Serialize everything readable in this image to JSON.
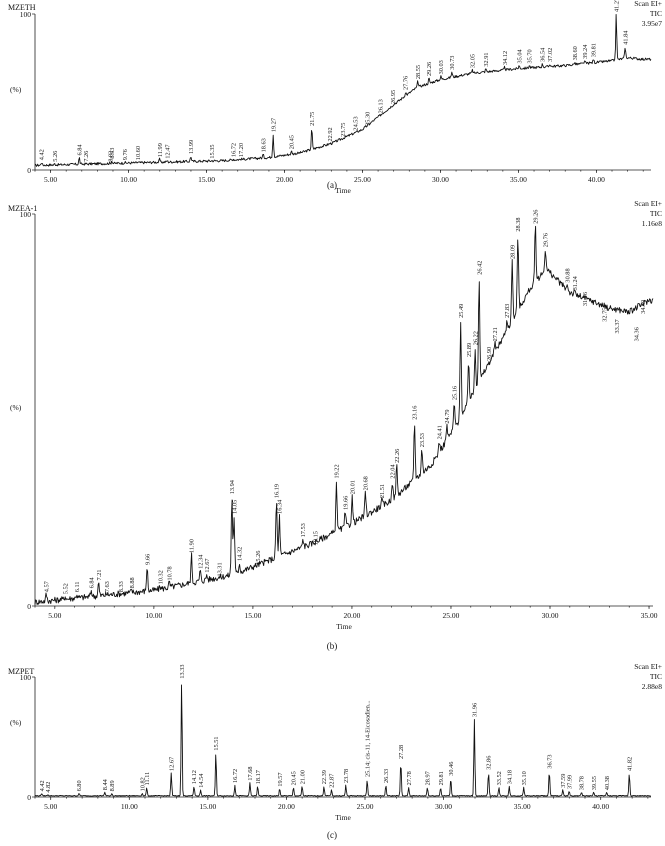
{
  "chart_data": [
    {
      "type": "line",
      "panel_label": "(a)",
      "sample_name": "MZETH",
      "scan_info": [
        "Scan EI+",
        "TIC",
        "3.95e7"
      ],
      "xlabel": "Time",
      "ylabel": "(%)",
      "xlim": [
        4.0,
        43.5
      ],
      "ylim": [
        0,
        100
      ],
      "x_ticks": [
        5.0,
        10.0,
        15.0,
        20.0,
        25.0,
        30.0,
        35.0,
        40.0
      ],
      "x_tick_labels": [
        "5.00",
        "10.00",
        "15.00",
        "20.00",
        "25.00",
        "30.00",
        "35.00",
        "40.00"
      ],
      "y_ticks": [
        0,
        100
      ],
      "y_tick_labels": [
        "0",
        "100"
      ],
      "baseline": [
        [
          4.0,
          3
        ],
        [
          8.0,
          4
        ],
        [
          12.0,
          5
        ],
        [
          16.0,
          6
        ],
        [
          19.0,
          8
        ],
        [
          21.0,
          11
        ],
        [
          23.0,
          17
        ],
        [
          25.0,
          26
        ],
        [
          27.0,
          42
        ],
        [
          28.5,
          53
        ],
        [
          30.0,
          58
        ],
        [
          32.0,
          62
        ],
        [
          35.0,
          65
        ],
        [
          38.0,
          67
        ],
        [
          40.0,
          69
        ],
        [
          41.0,
          70
        ],
        [
          42.0,
          72
        ],
        [
          43.0,
          71
        ]
      ],
      "peaks": [
        {
          "x": 4.42,
          "y": 5,
          "label": "4.42"
        },
        {
          "x": 5.26,
          "y": 4,
          "label": "5.26"
        },
        {
          "x": 6.84,
          "y": 8,
          "label": "6.84"
        },
        {
          "x": 7.26,
          "y": 4,
          "label": "7.26"
        },
        {
          "x": 8.82,
          "y": 4,
          "label": "8.82"
        },
        {
          "x": 8.93,
          "y": 6,
          "label": "8.93"
        },
        {
          "x": 9.76,
          "y": 5,
          "label": "9.76"
        },
        {
          "x": 10.6,
          "y": 5,
          "label": "10.60"
        },
        {
          "x": 11.99,
          "y": 7,
          "label": "11.99"
        },
        {
          "x": 12.47,
          "y": 6,
          "label": "12.47"
        },
        {
          "x": 13.99,
          "y": 9,
          "label": "13.99"
        },
        {
          "x": 15.35,
          "y": 6,
          "label": "15.35"
        },
        {
          "x": 16.72,
          "y": 7,
          "label": "16.72"
        },
        {
          "x": 17.2,
          "y": 7,
          "label": "17.20"
        },
        {
          "x": 18.63,
          "y": 10,
          "label": "18.63"
        },
        {
          "x": 19.27,
          "y": 23,
          "label": "19.27"
        },
        {
          "x": 20.45,
          "y": 12,
          "label": "20.45"
        },
        {
          "x": 21.75,
          "y": 27,
          "label": "21.75"
        },
        {
          "x": 22.92,
          "y": 17,
          "label": "22.92"
        },
        {
          "x": 23.75,
          "y": 20,
          "label": "23.75"
        },
        {
          "x": 24.53,
          "y": 24,
          "label": "24.53"
        },
        {
          "x": 25.3,
          "y": 27,
          "label": "25.30"
        },
        {
          "x": 26.13,
          "y": 35,
          "label": "26.13"
        },
        {
          "x": 26.95,
          "y": 41,
          "label": "26.95"
        },
        {
          "x": 27.76,
          "y": 50,
          "label": "27.76"
        },
        {
          "x": 28.55,
          "y": 57,
          "label": "28.55"
        },
        {
          "x": 29.26,
          "y": 59,
          "label": "29.26"
        },
        {
          "x": 30.03,
          "y": 60,
          "label": "30.03"
        },
        {
          "x": 30.73,
          "y": 63,
          "label": "30.73"
        },
        {
          "x": 32.05,
          "y": 64,
          "label": "32.05"
        },
        {
          "x": 32.91,
          "y": 65,
          "label": "32.91"
        },
        {
          "x": 34.12,
          "y": 66,
          "label": "34.12"
        },
        {
          "x": 35.04,
          "y": 67,
          "label": "35.04"
        },
        {
          "x": 35.7,
          "y": 67,
          "label": "35.70"
        },
        {
          "x": 36.54,
          "y": 68,
          "label": "36.54"
        },
        {
          "x": 37.02,
          "y": 68,
          "label": "37.02"
        },
        {
          "x": 38.6,
          "y": 69,
          "label": "38.60"
        },
        {
          "x": 39.24,
          "y": 70,
          "label": "39.24"
        },
        {
          "x": 39.81,
          "y": 71,
          "label": "39.81"
        },
        {
          "x": 41.27,
          "y": 100,
          "label": "41.27"
        },
        {
          "x": 41.84,
          "y": 79,
          "label": "41.84"
        }
      ]
    },
    {
      "type": "line",
      "panel_label": "(b)",
      "sample_name": "MZEA-1",
      "scan_info": [
        "Scan EI+",
        "TIC",
        "1.16e8"
      ],
      "xlabel": "Time",
      "ylabel": "(%)",
      "xlim": [
        4.0,
        35.2
      ],
      "ylim": [
        0,
        100
      ],
      "x_ticks": [
        5.0,
        10.0,
        15.0,
        20.0,
        25.0,
        30.0,
        35.0
      ],
      "x_tick_labels": [
        "5.00",
        "10.00",
        "15.00",
        "20.00",
        "25.00",
        "30.00",
        "35.00"
      ],
      "y_ticks": [
        0,
        100
      ],
      "y_tick_labels": [
        "0",
        "100"
      ],
      "baseline": [
        [
          4.0,
          1
        ],
        [
          6.0,
          2
        ],
        [
          8.0,
          3
        ],
        [
          10.0,
          4
        ],
        [
          12.0,
          6
        ],
        [
          14.0,
          8
        ],
        [
          16.0,
          12
        ],
        [
          18.0,
          16
        ],
        [
          20.0,
          21
        ],
        [
          22.0,
          27
        ],
        [
          24.0,
          36
        ],
        [
          25.5,
          48
        ],
        [
          26.5,
          58
        ],
        [
          28.0,
          72
        ],
        [
          29.0,
          81
        ],
        [
          29.8,
          86
        ],
        [
          31.0,
          80
        ],
        [
          32.0,
          78
        ],
        [
          33.0,
          76
        ],
        [
          34.0,
          75
        ],
        [
          35.0,
          78
        ]
      ],
      "peaks": [
        {
          "x": 4.57,
          "y": 3,
          "label": "4.57"
        },
        {
          "x": 5.52,
          "y": 2.5,
          "label": "5.52"
        },
        {
          "x": 6.11,
          "y": 3,
          "label": "6.11"
        },
        {
          "x": 6.84,
          "y": 4,
          "label": "6.84"
        },
        {
          "x": 7.21,
          "y": 6,
          "label": "7.21"
        },
        {
          "x": 7.63,
          "y": 3,
          "label": "7.63"
        },
        {
          "x": 8.33,
          "y": 3,
          "label": "8.33"
        },
        {
          "x": 8.88,
          "y": 4,
          "label": "8.88"
        },
        {
          "x": 9.66,
          "y": 10,
          "label": "9.66"
        },
        {
          "x": 10.32,
          "y": 5,
          "label": "10.32"
        },
        {
          "x": 10.78,
          "y": 6,
          "label": "10.78"
        },
        {
          "x": 11.9,
          "y": 13,
          "label": "11.90"
        },
        {
          "x": 12.34,
          "y": 9,
          "label": "12.34"
        },
        {
          "x": 12.67,
          "y": 8,
          "label": "12.67"
        },
        {
          "x": 13.31,
          "y": 7,
          "label": "13.31"
        },
        {
          "x": 13.94,
          "y": 28,
          "label": "13.94"
        },
        {
          "x": 14.05,
          "y": 23,
          "label": "14.05"
        },
        {
          "x": 14.32,
          "y": 11,
          "label": "14.32"
        },
        {
          "x": 15.26,
          "y": 10,
          "label": "15.26"
        },
        {
          "x": 16.19,
          "y": 27,
          "label": "16.19"
        },
        {
          "x": 16.34,
          "y": 23,
          "label": "16.34"
        },
        {
          "x": 17.53,
          "y": 17,
          "label": "17.53"
        },
        {
          "x": 18.15,
          "y": 15,
          "label": "18.15"
        },
        {
          "x": 19.22,
          "y": 32,
          "label": "19.22"
        },
        {
          "x": 19.66,
          "y": 24,
          "label": "19.66"
        },
        {
          "x": 20.01,
          "y": 28,
          "label": "20.01"
        },
        {
          "x": 20.68,
          "y": 29,
          "label": "20.68"
        },
        {
          "x": 21.51,
          "y": 27,
          "label": "21.51"
        },
        {
          "x": 22.04,
          "y": 32,
          "label": "22.04"
        },
        {
          "x": 22.26,
          "y": 36,
          "label": "22.26"
        },
        {
          "x": 23.16,
          "y": 47,
          "label": "23.16"
        },
        {
          "x": 23.53,
          "y": 40,
          "label": "23.53"
        },
        {
          "x": 24.41,
          "y": 42,
          "label": "24.41"
        },
        {
          "x": 24.79,
          "y": 46,
          "label": "24.79"
        },
        {
          "x": 25.16,
          "y": 52,
          "label": "25.16"
        },
        {
          "x": 25.49,
          "y": 73,
          "label": "25.49"
        },
        {
          "x": 25.89,
          "y": 63,
          "label": "25.89"
        },
        {
          "x": 26.22,
          "y": 66,
          "label": "26.22"
        },
        {
          "x": 26.42,
          "y": 84,
          "label": "26.42"
        },
        {
          "x": 26.9,
          "y": 62,
          "label": "26.90"
        },
        {
          "x": 27.21,
          "y": 67,
          "label": "27.21"
        },
        {
          "x": 27.83,
          "y": 73,
          "label": "27.83"
        },
        {
          "x": 28.09,
          "y": 88,
          "label": "28.09"
        },
        {
          "x": 28.38,
          "y": 95,
          "label": "28.38"
        },
        {
          "x": 29.26,
          "y": 97,
          "label": "29.26"
        },
        {
          "x": 29.76,
          "y": 91,
          "label": "29.76"
        },
        {
          "x": 30.88,
          "y": 82,
          "label": "30.88"
        },
        {
          "x": 31.24,
          "y": 80,
          "label": "31.24"
        },
        {
          "x": 31.76,
          "y": 76,
          "label": "31.76"
        },
        {
          "x": 32.75,
          "y": 72,
          "label": "32.75"
        },
        {
          "x": 33.37,
          "y": 69,
          "label": "33.37"
        },
        {
          "x": 34.36,
          "y": 67,
          "label": "34.36"
        },
        {
          "x": 34.69,
          "y": 74,
          "label": "34.69"
        }
      ]
    },
    {
      "type": "line",
      "panel_label": "(c)",
      "sample_name": "MZPET",
      "scan_info": [
        "Scan EI+",
        "TIC",
        "2.88e8"
      ],
      "xlabel": "Time",
      "ylabel": "(%)",
      "xlim": [
        4.0,
        43.2
      ],
      "ylim": [
        0,
        100
      ],
      "x_ticks": [
        5.0,
        10.0,
        15.0,
        20.0,
        25.0,
        30.0,
        35.0,
        40.0
      ],
      "x_tick_labels": [
        "5.00",
        "10.00",
        "15.00",
        "20.00",
        "25.00",
        "30.00",
        "35.00",
        "40.00"
      ],
      "y_ticks": [
        0,
        100
      ],
      "y_tick_labels": [
        "0",
        "100"
      ],
      "baseline": [
        [
          4.0,
          1
        ],
        [
          43.0,
          1
        ]
      ],
      "peaks": [
        {
          "x": 4.42,
          "y": 3,
          "label": "4.42"
        },
        {
          "x": 4.82,
          "y": 2,
          "label": "4.82"
        },
        {
          "x": 6.8,
          "y": 3,
          "label": "6.80"
        },
        {
          "x": 8.44,
          "y": 4,
          "label": "8.44"
        },
        {
          "x": 8.89,
          "y": 3,
          "label": "8.89"
        },
        {
          "x": 10.82,
          "y": 3,
          "label": "10.82"
        },
        {
          "x": 11.11,
          "y": 8,
          "label": "11.11"
        },
        {
          "x": 12.67,
          "y": 20,
          "label": "12.67"
        },
        {
          "x": 13.33,
          "y": 97,
          "label": "13.33"
        },
        {
          "x": 14.12,
          "y": 9,
          "label": "14.12"
        },
        {
          "x": 14.54,
          "y": 6,
          "label": "14.54"
        },
        {
          "x": 15.51,
          "y": 37,
          "label": "15.51"
        },
        {
          "x": 16.72,
          "y": 10,
          "label": "16.72"
        },
        {
          "x": 17.68,
          "y": 12,
          "label": "17.68"
        },
        {
          "x": 18.17,
          "y": 9,
          "label": "18.17"
        },
        {
          "x": 19.57,
          "y": 7,
          "label": "19.57"
        },
        {
          "x": 20.45,
          "y": 8,
          "label": "20.45"
        },
        {
          "x": 21.0,
          "y": 9,
          "label": "21.00"
        },
        {
          "x": 22.39,
          "y": 9,
          "label": "22.39"
        },
        {
          "x": 22.87,
          "y": 6,
          "label": "22.87"
        },
        {
          "x": 23.78,
          "y": 10,
          "label": "23.78"
        },
        {
          "x": 25.14,
          "y": 15,
          "label": "25.14; cis-11, 14-Eicosadien..."
        },
        {
          "x": 26.33,
          "y": 10,
          "label": "26.33"
        },
        {
          "x": 27.28,
          "y": 30,
          "label": "27.28"
        },
        {
          "x": 27.78,
          "y": 8,
          "label": "27.78"
        },
        {
          "x": 28.97,
          "y": 8,
          "label": "28.97"
        },
        {
          "x": 29.81,
          "y": 8,
          "label": "29.81"
        },
        {
          "x": 30.46,
          "y": 16,
          "label": "30.46"
        },
        {
          "x": 31.96,
          "y": 65,
          "label": "31.96"
        },
        {
          "x": 32.86,
          "y": 21,
          "label": "32.86"
        },
        {
          "x": 33.52,
          "y": 8,
          "label": "33.52"
        },
        {
          "x": 34.18,
          "y": 9,
          "label": "34.18"
        },
        {
          "x": 35.1,
          "y": 8,
          "label": "35.10"
        },
        {
          "x": 36.73,
          "y": 22,
          "label": "36.73"
        },
        {
          "x": 37.59,
          "y": 6,
          "label": "37.59"
        },
        {
          "x": 37.99,
          "y": 5,
          "label": "37.99"
        },
        {
          "x": 38.78,
          "y": 4,
          "label": "38.78"
        },
        {
          "x": 39.55,
          "y": 4,
          "label": "39.55"
        },
        {
          "x": 40.38,
          "y": 4,
          "label": "40.38"
        },
        {
          "x": 41.82,
          "y": 20,
          "label": "41.82"
        }
      ]
    }
  ]
}
